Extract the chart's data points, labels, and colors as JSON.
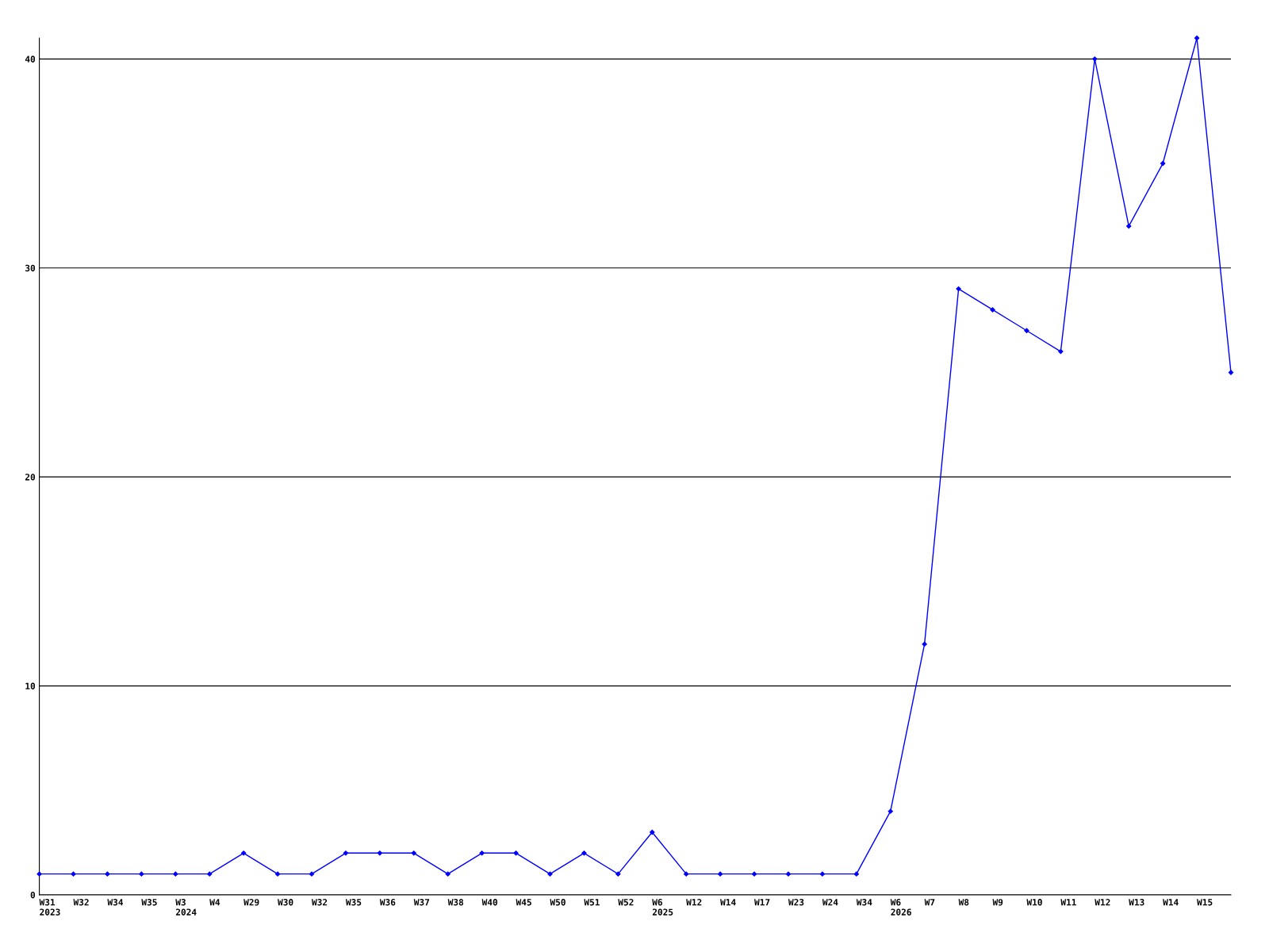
{
  "chart_data": {
    "type": "line",
    "categories": [
      "W31\n2023",
      "W32",
      "W34",
      "W35",
      "W3\n2024",
      "W4",
      "W29",
      "W30",
      "W32",
      "W35",
      "W36",
      "W37",
      "W38",
      "W40",
      "W45",
      "W50",
      "W51",
      "W52",
      "W6\n2025",
      "W12",
      "W14",
      "W17",
      "W23",
      "W24",
      "W34",
      "W6\n2026",
      "W7",
      "W8",
      "W9",
      "W10",
      "W11",
      "W12",
      "W13",
      "W14",
      "W15",
      null
    ],
    "series": [
      {
        "color": "#0000ff",
        "values": [
          1,
          1,
          1,
          1,
          1,
          1,
          2,
          1,
          1,
          2,
          2,
          2,
          1,
          2,
          2,
          1,
          2,
          1,
          3,
          1,
          1,
          1,
          1,
          1,
          1,
          4,
          12,
          29,
          28,
          27,
          26,
          40,
          32,
          35,
          41,
          25
        ]
      }
    ],
    "ylim": [
      0,
      41
    ],
    "yticks": [
      0,
      10,
      20,
      30,
      40
    ],
    "grid": "y",
    "marker": "diamond",
    "line_style": "solid",
    "legend": false
  }
}
